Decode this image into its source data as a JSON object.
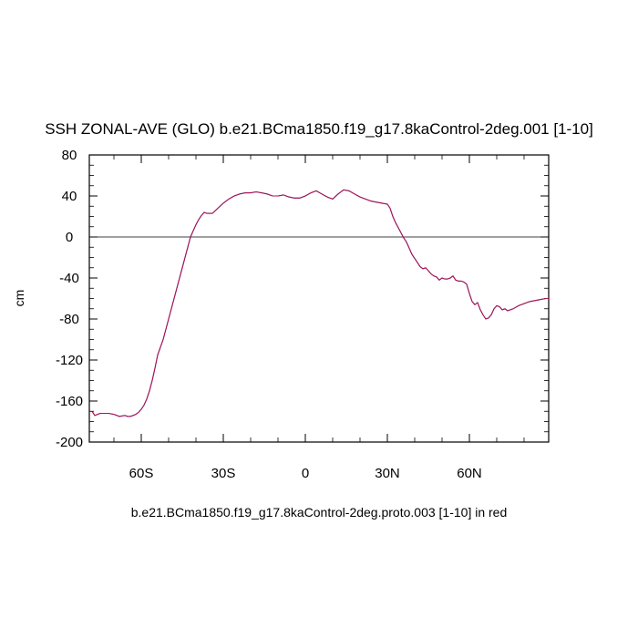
{
  "chart_data": {
    "type": "line",
    "title": "SSH ZONAL-AVE (GLO) b.e21.BCma1850.f19_g17.8kaControl-2deg.001 [1-10]",
    "subtitle": "b.e21.BCma1850.f19_g17.8kaControl-2deg.proto.003 [1-10] in red",
    "xlabel": "",
    "ylabel": "cm",
    "xlim": [
      -79,
      89
    ],
    "ylim": [
      -200,
      80
    ],
    "xticks": [
      {
        "value": -60,
        "label": "60S"
      },
      {
        "value": -30,
        "label": "30S"
      },
      {
        "value": 0,
        "label": "0"
      },
      {
        "value": 30,
        "label": "30N"
      },
      {
        "value": 60,
        "label": "60N"
      }
    ],
    "yticks": [
      {
        "value": 80,
        "label": "80"
      },
      {
        "value": 40,
        "label": "40"
      },
      {
        "value": 0,
        "label": "0"
      },
      {
        "value": -40,
        "label": "-40"
      },
      {
        "value": -80,
        "label": "-80"
      },
      {
        "value": -120,
        "label": "-120"
      },
      {
        "value": -160,
        "label": "-160"
      },
      {
        "value": -200,
        "label": "-200"
      }
    ],
    "zero_line": true,
    "grid": false,
    "colors": {
      "series_a": "#1a1aa6",
      "series_b": "#d0103a"
    },
    "series": [
      {
        "x": [
          -78,
          -77,
          -75,
          -72,
          -70,
          -68,
          -66,
          -65,
          -64,
          -63,
          -62,
          -61,
          -60,
          -59,
          -58,
          -57,
          -56,
          -55,
          -54,
          -52,
          -50,
          -48,
          -46,
          -45,
          -44,
          -43,
          -42,
          -41,
          -40,
          -39,
          -38,
          -37,
          -36,
          -34,
          -32,
          -30,
          -28,
          -26,
          -24,
          -22,
          -20,
          -18,
          -16,
          -14,
          -12,
          -10,
          -8,
          -6,
          -4,
          -2,
          0,
          2,
          4,
          6,
          8,
          10,
          12,
          14,
          16,
          18,
          20,
          22,
          24,
          26,
          28,
          30,
          31,
          32,
          33,
          34,
          35,
          36,
          37,
          38,
          39,
          40,
          41,
          42,
          43,
          44,
          45,
          46,
          47,
          48,
          49,
          50,
          51,
          52,
          53,
          54,
          55,
          56,
          57,
          58,
          59,
          60,
          61,
          62,
          63,
          64,
          65,
          66,
          67,
          68,
          69,
          70,
          71,
          72,
          73,
          74,
          75,
          76,
          78,
          80,
          82,
          84,
          86,
          88,
          89
        ],
        "y": [
          -170,
          -174,
          -172,
          -172,
          -173,
          -175,
          -174,
          -175,
          -175,
          -174,
          -173,
          -171,
          -168,
          -164,
          -158,
          -150,
          -140,
          -128,
          -115,
          -100,
          -80,
          -60,
          -40,
          -30,
          -20,
          -10,
          0,
          6,
          12,
          17,
          21,
          24,
          23,
          23,
          28,
          33,
          37,
          40,
          42,
          43,
          43,
          44,
          43,
          42,
          40,
          40,
          41,
          39,
          38,
          38,
          40,
          43,
          45,
          42,
          39,
          37,
          42,
          46,
          45,
          42,
          39,
          37,
          35,
          34,
          33,
          32,
          28,
          20,
          14,
          9,
          4,
          -1,
          -5,
          -11,
          -17,
          -21,
          -25,
          -29,
          -31,
          -30,
          -33,
          -36,
          -38,
          -39,
          -42,
          -40,
          -41,
          -41,
          -40,
          -38,
          -42,
          -43,
          -43,
          -44,
          -46,
          -55,
          -63,
          -66,
          -64,
          -71,
          -76,
          -80,
          -79,
          -76,
          -70,
          -67,
          -68,
          -71,
          -70,
          -72,
          -71,
          -70,
          -67,
          -65,
          -63,
          -62,
          -61,
          -60,
          -60
        ]
      }
    ]
  }
}
